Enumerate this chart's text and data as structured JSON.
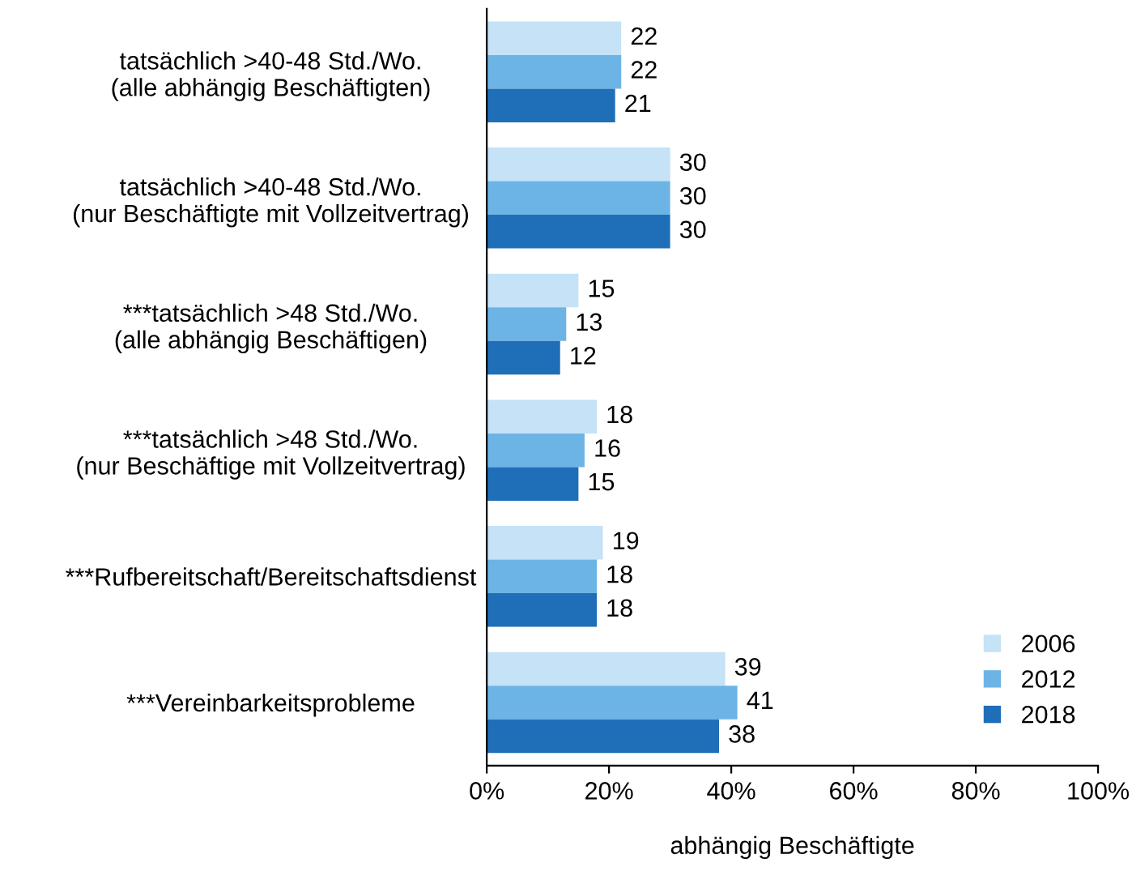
{
  "chart_data": {
    "type": "bar",
    "orientation": "horizontal",
    "xlabel": "abhängig Beschäftigte",
    "categories": [
      "tatsächlich >40-48 Std./Wo.\n(alle abhängig Beschäftigten)",
      "tatsächlich >40-48 Std./Wo.\n(nur Beschäftigte mit Vollzeitvertrag)",
      "***tatsächlich >48 Std./Wo.\n(alle abhängig Beschäftigen)",
      "***tatsächlich >48 Std./Wo.\n(nur Beschäftige mit Vollzeitvertrag)",
      "***Rufbereitschaft/Bereitschaftsdienst",
      "***Vereinbarkeitsprobleme"
    ],
    "series": [
      {
        "name": "2006",
        "color": "#c5e2f6",
        "values": [
          22,
          30,
          15,
          18,
          19,
          39
        ]
      },
      {
        "name": "2012",
        "color": "#6cb4e6",
        "values": [
          22,
          30,
          13,
          16,
          18,
          41
        ]
      },
      {
        "name": "2018",
        "color": "#1f6eb8",
        "values": [
          21,
          30,
          12,
          15,
          18,
          38
        ]
      }
    ],
    "xlim": [
      0,
      100
    ],
    "xticks": [
      {
        "value": 0,
        "label": "0%"
      },
      {
        "value": 20,
        "label": "20%"
      },
      {
        "value": 40,
        "label": "40%"
      },
      {
        "value": 60,
        "label": "60%"
      },
      {
        "value": 80,
        "label": "80%"
      },
      {
        "value": 100,
        "label": "100%"
      }
    ],
    "data_labels": true,
    "grid": false,
    "legend": "bottom right"
  }
}
